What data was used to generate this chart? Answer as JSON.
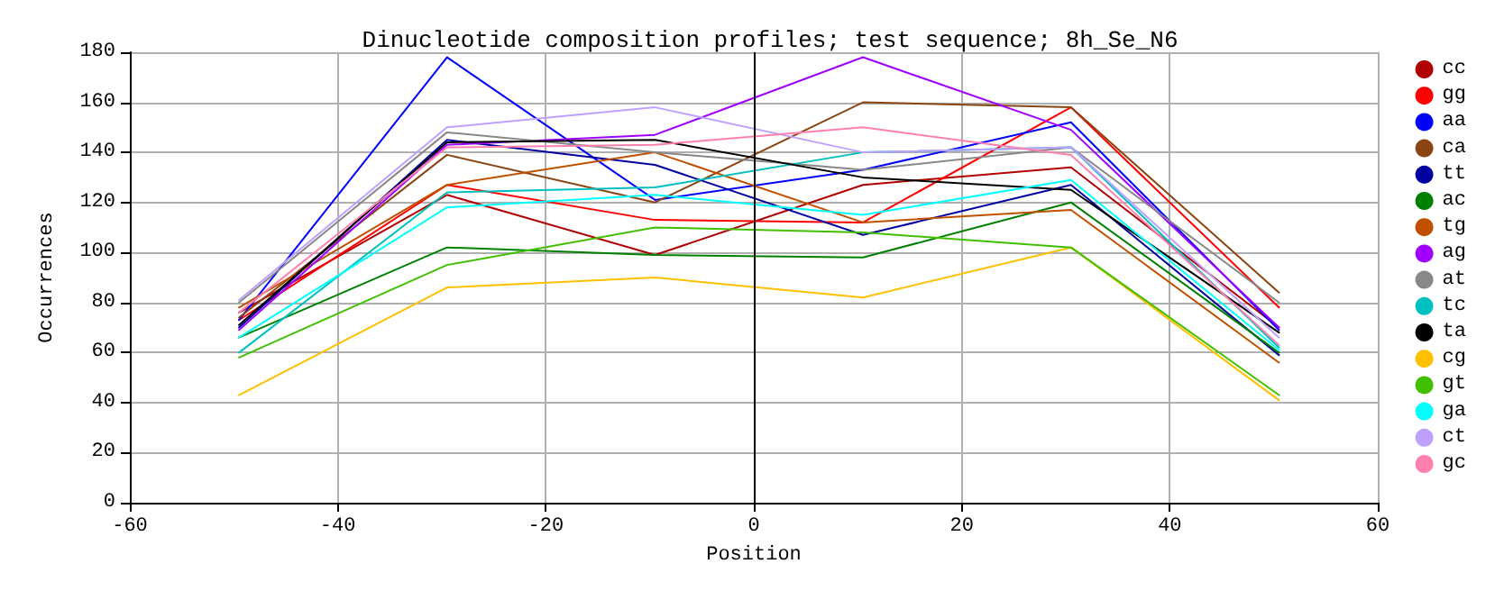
{
  "chart_data": {
    "type": "line",
    "title": "Dinucleotide composition profiles; test sequence; 8h_Se_N6",
    "xlabel": "Position",
    "ylabel": "Occurrences",
    "x": [
      -49.5,
      -29.5,
      -9.5,
      10.5,
      30.5,
      50.5
    ],
    "xlim": [
      -60,
      60
    ],
    "xticks": [
      -60,
      -40,
      -20,
      0,
      20,
      40,
      60
    ],
    "ylim": [
      0,
      180
    ],
    "yticks": [
      0,
      20,
      40,
      60,
      80,
      100,
      120,
      140,
      160,
      180
    ],
    "grid": true,
    "legend": "right",
    "marker": "none",
    "line_style": "solid",
    "ref_lines": [
      {
        "axis": "x",
        "value": 0,
        "color": "#000000"
      }
    ],
    "series": [
      {
        "name": "cc",
        "color": "#b00000",
        "values": [
          76,
          123,
          99,
          127,
          134,
          70
        ]
      },
      {
        "name": "gg",
        "color": "#ff0000",
        "values": [
          73,
          127,
          113,
          112,
          158,
          78
        ]
      },
      {
        "name": "aa",
        "color": "#0000ff",
        "values": [
          73,
          178,
          121,
          133,
          152,
          69
        ]
      },
      {
        "name": "ca",
        "color": "#8b4513",
        "values": [
          74,
          139,
          120,
          160,
          158,
          84
        ]
      },
      {
        "name": "tt",
        "color": "#0000a0",
        "values": [
          70,
          145,
          135,
          107,
          127,
          59
        ]
      },
      {
        "name": "ac",
        "color": "#008000",
        "values": [
          66,
          102,
          99,
          98,
          120,
          60
        ]
      },
      {
        "name": "tg",
        "color": "#c05000",
        "values": [
          78,
          127,
          140,
          112,
          117,
          56
        ]
      },
      {
        "name": "ag",
        "color": "#a000ff",
        "values": [
          69,
          143,
          147,
          178,
          149,
          70
        ]
      },
      {
        "name": "at",
        "color": "#888888",
        "values": [
          80,
          148,
          140,
          133,
          142,
          80
        ]
      },
      {
        "name": "tc",
        "color": "#00c0c0",
        "values": [
          60,
          124,
          126,
          140,
          142,
          62
        ]
      },
      {
        "name": "ta",
        "color": "#000000",
        "values": [
          71,
          144,
          145,
          130,
          125,
          68
        ]
      },
      {
        "name": "cg",
        "color": "#ffc000",
        "values": [
          43,
          86,
          90,
          82,
          102,
          41
        ]
      },
      {
        "name": "gt",
        "color": "#40c000",
        "values": [
          58,
          95,
          110,
          108,
          102,
          43
        ]
      },
      {
        "name": "ga",
        "color": "#00ffff",
        "values": [
          66,
          118,
          123,
          115,
          129,
          61
        ]
      },
      {
        "name": "ct",
        "color": "#c0a0ff",
        "values": [
          81,
          150,
          158,
          140,
          142,
          66
        ]
      },
      {
        "name": "gc",
        "color": "#ff80b0",
        "values": [
          76,
          142,
          143,
          150,
          139,
          63
        ]
      }
    ]
  }
}
